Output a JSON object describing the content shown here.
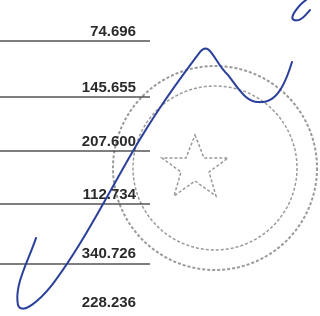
{
  "rows": [
    {
      "amount": "74.696"
    },
    {
      "amount": "145.655"
    },
    {
      "amount": "207.600"
    },
    {
      "amount": "112.734"
    },
    {
      "amount": "340.726"
    },
    {
      "amount": "228.236"
    }
  ]
}
